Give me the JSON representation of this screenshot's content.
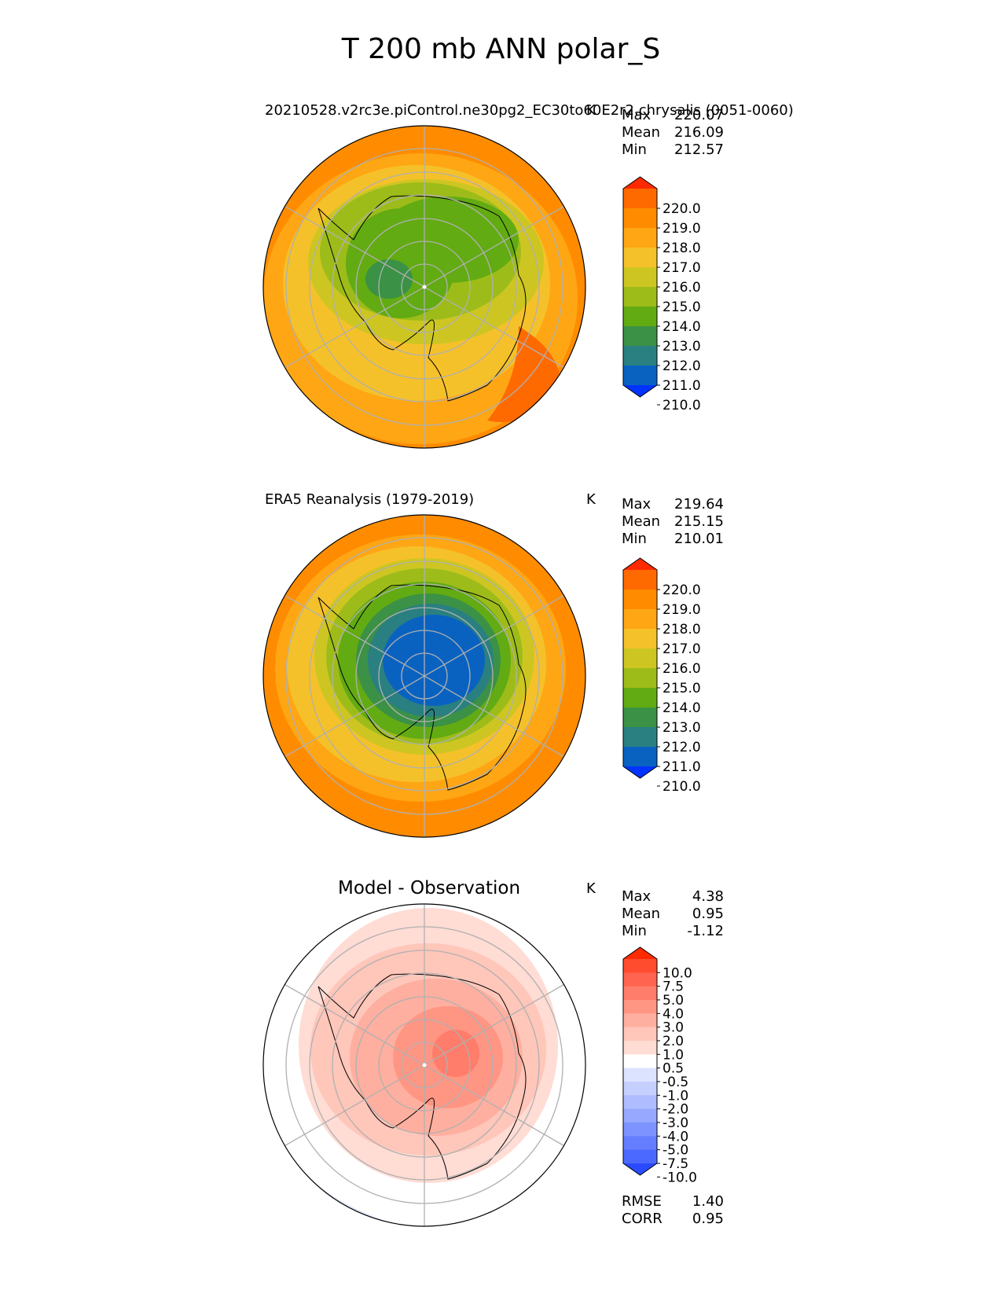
{
  "suptitle": "T 200 mb ANN polar_S",
  "panels": [
    {
      "title": "20210528.v2rc3e.piControl.ne30pg2_EC30to60E2r2.chrysalis (0051-0060)",
      "unit": "K",
      "stats": [
        {
          "label": "Max",
          "value": "220.07"
        },
        {
          "label": "Mean",
          "value": "216.09"
        },
        {
          "label": "Min",
          "value": "212.57"
        }
      ]
    },
    {
      "title": "ERA5 Reanalysis (1979-2019)",
      "unit": "K",
      "stats": [
        {
          "label": "Max",
          "value": "219.64"
        },
        {
          "label": "Mean",
          "value": "215.15"
        },
        {
          "label": "Min",
          "value": "210.01"
        }
      ]
    },
    {
      "title": "Model - Observation",
      "unit": "K",
      "stats": [
        {
          "label": "Max",
          "value": "4.38"
        },
        {
          "label": "Mean",
          "value": "0.95"
        },
        {
          "label": "Min",
          "value": "-1.12"
        }
      ],
      "metrics": [
        {
          "label": "RMSE",
          "value": "1.40"
        },
        {
          "label": "CORR",
          "value": "0.95"
        }
      ]
    }
  ],
  "colorbar_abs": {
    "labels": [
      "220.0",
      "219.0",
      "218.0",
      "217.0",
      "216.0",
      "215.0",
      "214.0",
      "213.0",
      "212.0",
      "211.0",
      "210.0"
    ],
    "colors": [
      "#ff2a00",
      "#ff6a00",
      "#ff8c00",
      "#ffa614",
      "#f5c12a",
      "#cdc622",
      "#9dbc1a",
      "#62ab12",
      "#3b9146",
      "#2a8080",
      "#0a62c0",
      "#0033ff"
    ]
  },
  "colorbar_diff": {
    "labels": [
      "10.0",
      "7.5",
      "5.0",
      "4.0",
      "3.0",
      "2.0",
      "1.0",
      "0.5",
      "-0.5",
      "-1.0",
      "-2.0",
      "-3.0",
      "-4.0",
      "-5.0",
      "-7.5",
      "-10.0"
    ],
    "colors": [
      "#ff2a00",
      "#ff4b2e",
      "#ff6450",
      "#ff7d6a",
      "#ff9684",
      "#ffaf9f",
      "#ffc6ba",
      "#ffdcd4",
      "#ffffff",
      "#dce3ff",
      "#c6d0ff",
      "#afbcff",
      "#96a8ff",
      "#7d93ff",
      "#647eff",
      "#4b69ff",
      "#2a4aff"
    ]
  },
  "map_colors": {
    "model": [
      "#ffa614",
      "#f5c12a",
      "#cdc622",
      "#9dbc1a",
      "#62ab12"
    ],
    "obs": [
      "#ff8c00",
      "#ffa614",
      "#f5c12a",
      "#cdc622",
      "#9dbc1a",
      "#62ab12",
      "#3b9146",
      "#2a8080",
      "#0a62c0"
    ],
    "diff": [
      "#ffffff",
      "#ffdcd4",
      "#ffc6ba",
      "#ffaf9f",
      "#ff9684",
      "#ff7d6a"
    ]
  }
}
